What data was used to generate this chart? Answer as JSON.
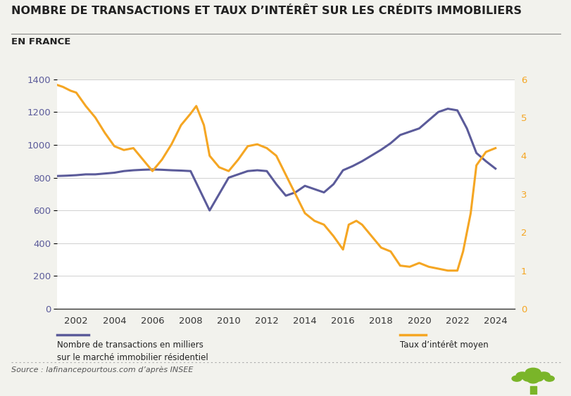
{
  "title": "NOMBRE DE TRANSACTIONS ET TAUX D’INTÉRÊT SUR LES CRÉDITS IMMOBILIERS",
  "subtitle": "EN FRANCE",
  "source": "Source : lafinancepourtous.com d’après INSEE",
  "legend_left": "Nombre de transactions en milliers\nsur le marché immobilier résidentiel",
  "legend_right": "Taux d’intérêt moyen",
  "transactions_x": [
    2001.0,
    2001.5,
    2002.0,
    2002.5,
    2003.0,
    2003.5,
    2004.0,
    2004.5,
    2005.0,
    2005.5,
    2006.0,
    2006.5,
    2007.0,
    2007.5,
    2008.0,
    2008.5,
    2009.0,
    2009.5,
    2010.0,
    2010.5,
    2011.0,
    2011.5,
    2012.0,
    2012.5,
    2013.0,
    2013.5,
    2014.0,
    2014.5,
    2015.0,
    2015.5,
    2016.0,
    2016.5,
    2017.0,
    2017.5,
    2018.0,
    2018.5,
    2019.0,
    2019.5,
    2020.0,
    2020.5,
    2021.0,
    2021.5,
    2022.0,
    2022.5,
    2023.0,
    2023.5,
    2024.0
  ],
  "transactions_y": [
    810,
    812,
    815,
    820,
    820,
    825,
    830,
    840,
    845,
    848,
    850,
    848,
    845,
    843,
    840,
    720,
    600,
    700,
    800,
    820,
    840,
    845,
    840,
    760,
    690,
    710,
    750,
    730,
    710,
    760,
    845,
    870,
    900,
    935,
    970,
    1010,
    1060,
    1080,
    1100,
    1150,
    1200,
    1220,
    1210,
    1100,
    950,
    900,
    855
  ],
  "taux_x": [
    2001.0,
    2001.3,
    2001.7,
    2002.0,
    2002.5,
    2003.0,
    2003.5,
    2004.0,
    2004.5,
    2005.0,
    2005.5,
    2006.0,
    2006.5,
    2007.0,
    2007.5,
    2008.0,
    2008.3,
    2008.7,
    2009.0,
    2009.5,
    2010.0,
    2010.5,
    2011.0,
    2011.5,
    2012.0,
    2012.5,
    2013.0,
    2013.5,
    2014.0,
    2014.5,
    2015.0,
    2015.5,
    2016.0,
    2016.3,
    2016.7,
    2017.0,
    2017.5,
    2018.0,
    2018.5,
    2019.0,
    2019.5,
    2020.0,
    2020.5,
    2021.0,
    2021.5,
    2022.0,
    2022.3,
    2022.7,
    2023.0,
    2023.5,
    2024.0
  ],
  "taux_y": [
    5.85,
    5.8,
    5.7,
    5.65,
    5.3,
    5.0,
    4.6,
    4.25,
    4.15,
    4.2,
    3.9,
    3.6,
    3.9,
    4.3,
    4.8,
    5.1,
    5.3,
    4.8,
    4.0,
    3.7,
    3.6,
    3.9,
    4.25,
    4.3,
    4.2,
    4.0,
    3.5,
    3.0,
    2.5,
    2.3,
    2.2,
    1.9,
    1.55,
    2.2,
    2.3,
    2.2,
    1.9,
    1.6,
    1.5,
    1.13,
    1.1,
    1.2,
    1.1,
    1.05,
    1.0,
    1.0,
    1.5,
    2.5,
    3.75,
    4.1,
    4.2
  ],
  "transactions_color": "#5b5b9a",
  "taux_color": "#f5a623",
  "bg_color": "#f2f2ed",
  "plot_bg_color": "#ffffff",
  "ylim_left": [
    0,
    1400
  ],
  "ylim_right": [
    0,
    6
  ],
  "yticks_left": [
    0,
    200,
    400,
    600,
    800,
    1000,
    1200,
    1400
  ],
  "yticks_right": [
    0,
    1,
    2,
    3,
    4,
    5,
    6
  ],
  "xticks": [
    2002,
    2004,
    2006,
    2008,
    2010,
    2012,
    2014,
    2016,
    2018,
    2020,
    2022,
    2024
  ],
  "xlim": [
    2001,
    2025
  ],
  "line_width": 2.2
}
